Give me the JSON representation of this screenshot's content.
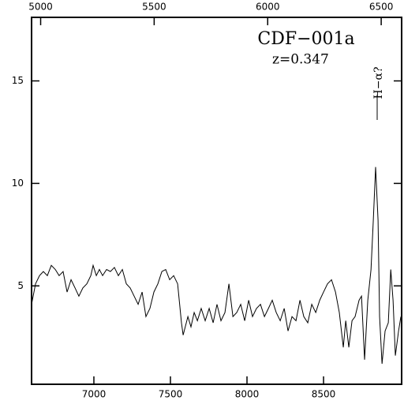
{
  "chart_data": {
    "type": "line",
    "title": "CDF−001a",
    "subtitle": "z=0.347",
    "annotation": "H−α?",
    "x": [
      6593,
      6619,
      6645,
      6670,
      6696,
      6722,
      6748,
      6773,
      6799,
      6825,
      6851,
      6877,
      6902,
      6928,
      6954,
      6980,
      6995,
      7016,
      7036,
      7057,
      7083,
      7108,
      7134,
      7160,
      7186,
      7212,
      7237,
      7263,
      7289,
      7315,
      7340,
      7366,
      7392,
      7418,
      7444,
      7469,
      7495,
      7521,
      7547,
      7572,
      7583,
      7614,
      7634,
      7655,
      7676,
      7701,
      7727,
      7753,
      7779,
      7804,
      7830,
      7856,
      7882,
      7908,
      7933,
      7959,
      7985,
      8011,
      8036,
      8062,
      8088,
      8114,
      8140,
      8165,
      8191,
      8217,
      8243,
      8268,
      8294,
      8320,
      8346,
      8371,
      8397,
      8423,
      8449,
      8475,
      8500,
      8526,
      8552,
      8578,
      8603,
      8629,
      8645,
      8665,
      8686,
      8706,
      8732,
      8748,
      8768,
      8789,
      8810,
      8825,
      8840,
      8856,
      8866,
      8882,
      8902,
      8923,
      8939,
      8954,
      8969,
      8990,
      9005
    ],
    "series": [
      {
        "color": "#000000",
        "values": [
          4.1,
          5.1,
          5.5,
          5.7,
          5.5,
          6.0,
          5.8,
          5.5,
          5.7,
          4.7,
          5.3,
          4.9,
          4.5,
          4.9,
          5.1,
          5.5,
          6.0,
          5.5,
          5.8,
          5.5,
          5.8,
          5.7,
          5.9,
          5.5,
          5.8,
          5.1,
          4.9,
          4.5,
          4.1,
          4.7,
          3.5,
          3.9,
          4.7,
          5.1,
          5.7,
          5.8,
          5.3,
          5.5,
          5.1,
          3.2,
          2.6,
          3.5,
          3.0,
          3.7,
          3.3,
          3.9,
          3.3,
          3.9,
          3.2,
          4.1,
          3.3,
          3.7,
          5.1,
          3.5,
          3.7,
          4.1,
          3.3,
          4.3,
          3.5,
          3.9,
          4.1,
          3.5,
          3.9,
          4.3,
          3.7,
          3.3,
          3.9,
          2.8,
          3.5,
          3.3,
          4.3,
          3.5,
          3.2,
          4.1,
          3.7,
          4.3,
          4.7,
          5.1,
          5.3,
          4.7,
          3.7,
          2.0,
          3.3,
          2.0,
          3.3,
          3.5,
          4.3,
          4.5,
          1.4,
          4.3,
          5.8,
          8.2,
          10.8,
          8.2,
          3.5,
          1.2,
          2.8,
          3.2,
          5.8,
          4.3,
          1.6,
          2.8,
          3.5
        ]
      }
    ],
    "xlim": [
      6593,
      9010
    ],
    "xticks": [
      7000,
      7500,
      8000,
      8500
    ],
    "x2lim": [
      4960,
      6590
    ],
    "x2ticks": [
      5000,
      5500,
      6000,
      6500
    ],
    "ylim": [
      0.2,
      18.1
    ],
    "yticks": [
      5,
      10,
      15
    ]
  }
}
